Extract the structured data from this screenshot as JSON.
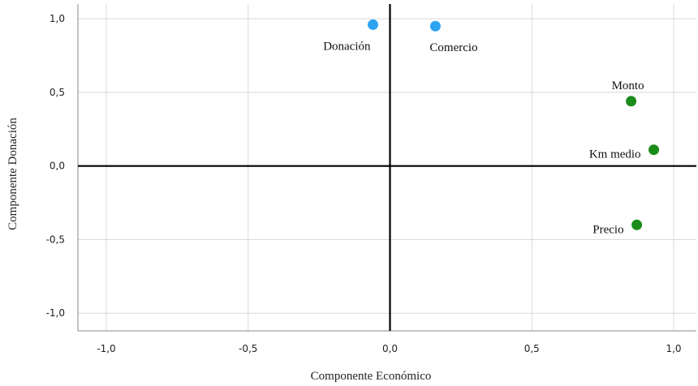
{
  "chart_data": {
    "type": "scatter",
    "title": "",
    "xlabel": "Componente  Económico",
    "ylabel": "Componente  Donación",
    "xlim": [
      -1.1,
      1.08
    ],
    "ylim": [
      -1.12,
      1.1
    ],
    "x_ticks": [
      -1.0,
      -0.5,
      0.0,
      0.5,
      1.0
    ],
    "x_tick_labels": [
      "-1,0",
      "-0,5",
      "0,0",
      "0,5",
      "1,0"
    ],
    "y_ticks": [
      1.0,
      0.5,
      0.0,
      -0.5,
      -1.0
    ],
    "y_tick_labels": [
      "1,0",
      "0,5",
      "0,0",
      "-0,5",
      "-1,0"
    ],
    "grid": true,
    "points": [
      {
        "label": "Donación",
        "x": -0.06,
        "y": 0.96,
        "color": "#2ea3f2",
        "label_pos": "below-left"
      },
      {
        "label": "Comercio",
        "x": 0.16,
        "y": 0.95,
        "color": "#2ea3f2",
        "label_pos": "below-right"
      },
      {
        "label": "Monto",
        "x": 0.85,
        "y": 0.44,
        "color": "#1a8c1a",
        "label_pos": "above-left"
      },
      {
        "label": "Km medio",
        "x": 0.93,
        "y": 0.11,
        "color": "#1a8c1a",
        "label_pos": "left"
      },
      {
        "label": "Precio",
        "x": 0.87,
        "y": -0.4,
        "color": "#1a8c1a",
        "label_pos": "left"
      }
    ]
  }
}
